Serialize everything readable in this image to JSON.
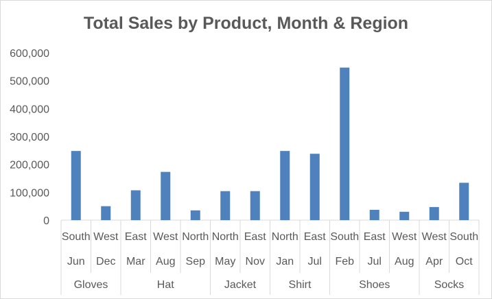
{
  "chart_data": {
    "type": "bar",
    "title": "Total Sales by Product, Month & Region",
    "ylim": [
      0,
      600000
    ],
    "yticks": [
      "0",
      "100,000",
      "200,000",
      "300,000",
      "400,000",
      "500,000",
      "600,000"
    ],
    "ytick_values": [
      0,
      100000,
      200000,
      300000,
      400000,
      500000,
      600000
    ],
    "grid": false,
    "legend": "none",
    "bar_color": "#4f81bd",
    "axis_color": "#d9d9d9",
    "categories": [
      {
        "region": "South",
        "month": "Jun",
        "product": "Gloves",
        "value": 248000
      },
      {
        "region": "West",
        "month": "Dec",
        "product": "Gloves",
        "value": 50000
      },
      {
        "region": "East",
        "month": "Mar",
        "product": "Hat",
        "value": 107000
      },
      {
        "region": "West",
        "month": "Aug",
        "product": "Hat",
        "value": 173000
      },
      {
        "region": "North",
        "month": "Sep",
        "product": "Hat",
        "value": 35000
      },
      {
        "region": "North",
        "month": "May",
        "product": "Jacket",
        "value": 104000
      },
      {
        "region": "East",
        "month": "Nov",
        "product": "Jacket",
        "value": 104000
      },
      {
        "region": "North",
        "month": "Jan",
        "product": "Shirt",
        "value": 248000
      },
      {
        "region": "East",
        "month": "Jul",
        "product": "Shirt",
        "value": 238000
      },
      {
        "region": "South",
        "month": "Feb",
        "product": "Shoes",
        "value": 547000
      },
      {
        "region": "East",
        "month": "Jul",
        "product": "Shoes",
        "value": 37000
      },
      {
        "region": "West",
        "month": "Aug",
        "product": "Shoes",
        "value": 30000
      },
      {
        "region": "West",
        "month": "Apr",
        "product": "Socks",
        "value": 47000
      },
      {
        "region": "South",
        "month": "Oct",
        "product": "Socks",
        "value": 134000
      }
    ],
    "product_groups": [
      {
        "name": "Gloves",
        "count": 2
      },
      {
        "name": "Hat",
        "count": 3
      },
      {
        "name": "Jacket",
        "count": 2
      },
      {
        "name": "Shirt",
        "count": 2
      },
      {
        "name": "Shoes",
        "count": 3
      },
      {
        "name": "Socks",
        "count": 2
      }
    ]
  }
}
